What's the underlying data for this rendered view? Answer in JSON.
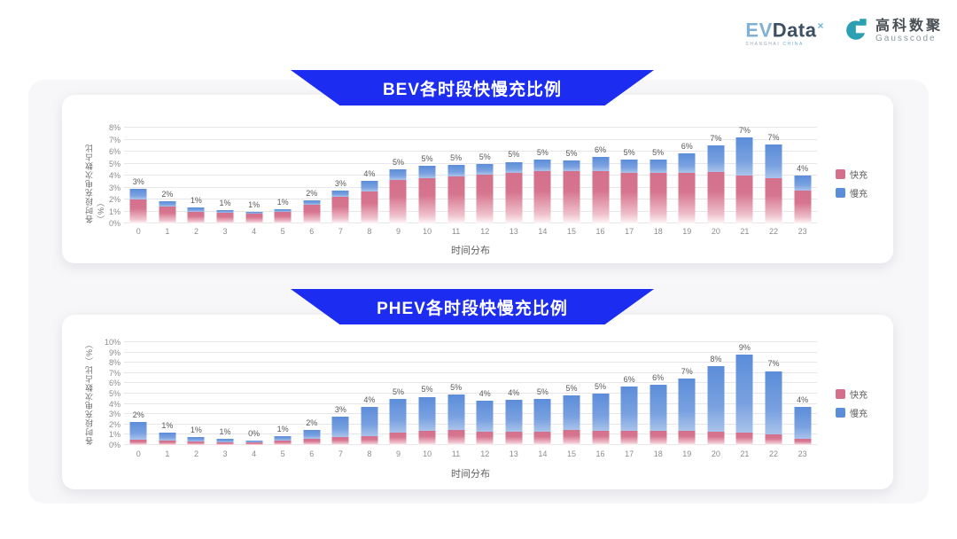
{
  "header": {
    "evdata_logo": {
      "ev": "EV",
      "data": "Data",
      "sup": "×",
      "sub1": "SHANGHAI",
      "sub2": "CHINA"
    },
    "gausscode_logo": {
      "cn": "高科数聚",
      "en": "Gausscode",
      "icon_color": "#2aa0b2"
    }
  },
  "colors": {
    "banner_blue": "#1c2cf0",
    "fast_pink": "#d4708c",
    "slow_blue": "#5c8dd9",
    "panel_gray": "#f7f7f9",
    "gridline": "#e7e7ea"
  },
  "chart_data": [
    {
      "type": "bar",
      "stacked": true,
      "title": "BEV各时段快慢充比例",
      "ylabel": "各时段充电次数占比（%）",
      "xlabel": "时间分布",
      "ylim": [
        0,
        8
      ],
      "grid": true,
      "legend_position": "right",
      "categories": [
        "0",
        "1",
        "2",
        "3",
        "4",
        "5",
        "6",
        "7",
        "8",
        "9",
        "10",
        "11",
        "12",
        "13",
        "14",
        "15",
        "16",
        "17",
        "18",
        "19",
        "20",
        "21",
        "22",
        "23"
      ],
      "series": [
        {
          "name": "快充",
          "color": "#d4708c",
          "values": [
            2.0,
            1.4,
            1.0,
            0.9,
            0.85,
            1.0,
            1.55,
            2.2,
            2.65,
            3.6,
            3.8,
            3.9,
            4.1,
            4.2,
            4.35,
            4.35,
            4.4,
            4.2,
            4.2,
            4.2,
            4.3,
            4.0,
            3.8,
            2.75
          ]
        },
        {
          "name": "慢充",
          "color": "#5c8dd9",
          "values": [
            0.9,
            0.45,
            0.3,
            0.2,
            0.1,
            0.15,
            0.35,
            0.55,
            0.9,
            0.9,
            1.0,
            1.0,
            0.9,
            0.95,
            0.95,
            0.9,
            1.15,
            1.1,
            1.1,
            1.65,
            2.2,
            3.2,
            2.8,
            1.25
          ]
        }
      ],
      "bar_labels": [
        "3%",
        "2%",
        "1%",
        "1%",
        "1%",
        "1%",
        "2%",
        "3%",
        "4%",
        "5%",
        "5%",
        "5%",
        "5%",
        "5%",
        "5%",
        "5%",
        "6%",
        "5%",
        "5%",
        "6%",
        "7%",
        "7%",
        "7%",
        "4%"
      ]
    },
    {
      "type": "bar",
      "stacked": true,
      "title": "PHEV各时段快慢充比例",
      "ylabel": "各时段充电次数占比（%）",
      "xlabel": "时间分布",
      "ylim": [
        0,
        10
      ],
      "grid": true,
      "legend_position": "right",
      "categories": [
        "0",
        "1",
        "2",
        "3",
        "4",
        "5",
        "6",
        "7",
        "8",
        "9",
        "10",
        "11",
        "12",
        "13",
        "14",
        "15",
        "16",
        "17",
        "18",
        "19",
        "20",
        "21",
        "22",
        "23"
      ],
      "series": [
        {
          "name": "快充",
          "color": "#d4708c",
          "values": [
            0.5,
            0.4,
            0.35,
            0.3,
            0.25,
            0.4,
            0.6,
            0.75,
            0.9,
            1.25,
            1.4,
            1.5,
            1.3,
            1.3,
            1.3,
            1.5,
            1.4,
            1.4,
            1.4,
            1.35,
            1.3,
            1.2,
            1.0,
            0.6
          ]
        },
        {
          "name": "慢充",
          "color": "#5c8dd9",
          "values": [
            1.7,
            0.8,
            0.45,
            0.3,
            0.2,
            0.45,
            0.9,
            2.05,
            2.8,
            3.25,
            3.3,
            3.4,
            3.0,
            3.1,
            3.2,
            3.3,
            3.6,
            4.3,
            4.5,
            5.15,
            6.4,
            7.6,
            6.2,
            3.1
          ]
        }
      ],
      "bar_labels": [
        "2%",
        "1%",
        "1%",
        "1%",
        "0%",
        "1%",
        "2%",
        "3%",
        "4%",
        "5%",
        "5%",
        "5%",
        "4%",
        "4%",
        "5%",
        "5%",
        "5%",
        "6%",
        "6%",
        "7%",
        "8%",
        "9%",
        "7%",
        "4%"
      ]
    }
  ]
}
